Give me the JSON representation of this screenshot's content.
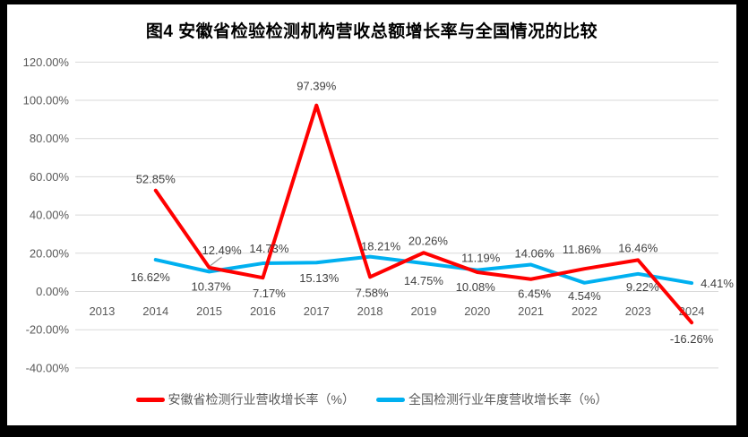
{
  "chart_data": {
    "type": "line",
    "title": "图4 安徽省检验检测机构营收总额增长率与全国情况的比较",
    "categories": [
      "2013",
      "2014",
      "2015",
      "2016",
      "2017",
      "2018",
      "2019",
      "2020",
      "2021",
      "2022",
      "2023",
      "2024"
    ],
    "series": [
      {
        "name": "安徽省检测行业营收增长率（%）",
        "color": "#FF0000",
        "values": [
          null,
          52.85,
          12.49,
          7.17,
          97.39,
          7.58,
          20.26,
          10.08,
          6.45,
          11.86,
          16.46,
          -16.26
        ],
        "labels": [
          null,
          "52.85%",
          "12.49%",
          "7.17%",
          "97.39%",
          "7.58%",
          "20.26%",
          "10.08%",
          "6.45%",
          "11.86%",
          "16.46%",
          "-16.26%"
        ]
      },
      {
        "name": "全国检测行业年度营收增长率（%）",
        "color": "#00B0F0",
        "values": [
          null,
          16.62,
          10.37,
          14.73,
          15.13,
          18.21,
          14.75,
          11.19,
          14.06,
          4.54,
          9.22,
          4.41
        ],
        "labels": [
          null,
          "16.62%",
          "10.37%",
          "14.73%",
          "15.13%",
          "18.21%",
          "14.75%",
          "11.19%",
          "14.06%",
          "4.54%",
          "9.22%",
          "4.41%"
        ]
      }
    ],
    "y_axis": {
      "ticks": [
        "120.00%",
        "100.00%",
        "80.00%",
        "60.00%",
        "40.00%",
        "20.00%",
        "0.00%",
        "-20.00%",
        "-40.00%"
      ],
      "min": -40,
      "max": 120,
      "step": 20
    },
    "xlabel": "",
    "ylabel": "",
    "grid": true,
    "legend_position": "bottom"
  },
  "colors": {
    "anhui_red": "#FF0000",
    "national_blue": "#00B0F0",
    "gridline": "#D9D9D9",
    "axis_text": "#595959",
    "data_label_text": "#404040",
    "leader_line": "#999999",
    "frame": "#000000",
    "chart_background": "#FFFFFF"
  }
}
